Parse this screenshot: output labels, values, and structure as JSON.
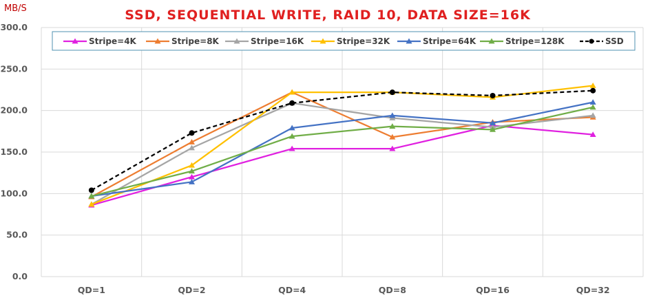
{
  "chart_data": {
    "type": "line",
    "title": "SSD, SEQUENTIAL WRITE, RAID 10, DATA SIZE=16K",
    "ylabel": "MB/S",
    "xlabel": "",
    "categories": [
      "QD=1",
      "QD=2",
      "QD=4",
      "QD=8",
      "QD=16",
      "QD=32"
    ],
    "ylim": [
      0,
      300
    ],
    "yticks": [
      "0.0",
      "50.0",
      "100.0",
      "150.0",
      "200.0",
      "250.0",
      "300.0"
    ],
    "grid": true,
    "legend_position": "top",
    "title_color": "#e02020",
    "series": [
      {
        "name": "Stripe=4K",
        "color": "#e020e0",
        "marker": "triangle",
        "dashed": false,
        "values": [
          86,
          120,
          154,
          154,
          182,
          171
        ]
      },
      {
        "name": "Stripe=8K",
        "color": "#ed7d31",
        "marker": "triangle",
        "dashed": false,
        "values": [
          96,
          162,
          222,
          168,
          186,
          192
        ]
      },
      {
        "name": "Stripe=16K",
        "color": "#a5a5a5",
        "marker": "triangle",
        "dashed": false,
        "values": [
          87,
          155,
          209,
          191,
          180,
          194
        ]
      },
      {
        "name": "Stripe=32K",
        "color": "#ffc000",
        "marker": "triangle",
        "dashed": false,
        "values": [
          87,
          134,
          222,
          222,
          216,
          230
        ]
      },
      {
        "name": "Stripe=64K",
        "color": "#4472c4",
        "marker": "triangle",
        "dashed": false,
        "values": [
          97,
          114,
          179,
          194,
          185,
          210
        ]
      },
      {
        "name": "Stripe=128K",
        "color": "#70ad47",
        "marker": "triangle",
        "dashed": false,
        "values": [
          97,
          127,
          169,
          181,
          177,
          204
        ]
      },
      {
        "name": "SSD",
        "color": "#000000",
        "marker": "circle",
        "dashed": true,
        "values": [
          104,
          173,
          209,
          222,
          218,
          224
        ]
      }
    ]
  }
}
